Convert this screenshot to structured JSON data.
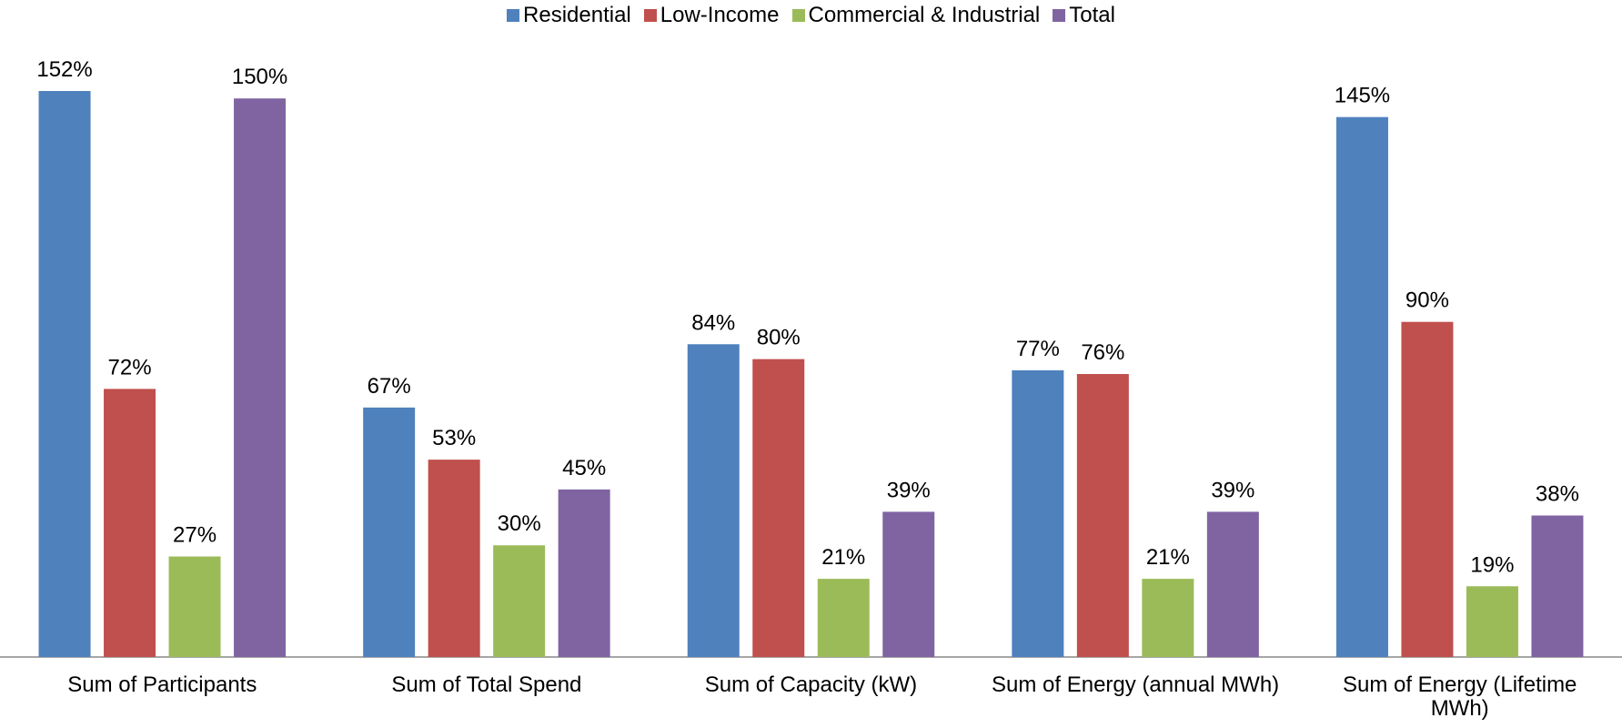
{
  "chart_data": {
    "type": "bar",
    "categories": [
      "Sum of Participants",
      "Sum of Total Spend",
      "Sum of Capacity (kW)",
      "Sum of Energy (annual MWh)",
      "Sum of Energy (Lifetime MWh)"
    ],
    "series": [
      {
        "name": "Residential",
        "color": "#4f81bd",
        "values": [
          152,
          67,
          84,
          77,
          145
        ],
        "value_labels": [
          "152%",
          "67%",
          "84%",
          "77%",
          "145%"
        ]
      },
      {
        "name": "Low-Income",
        "color": "#c0504d",
        "values": [
          72,
          53,
          80,
          76,
          90
        ],
        "value_labels": [
          "72%",
          "53%",
          "80%",
          "76%",
          "90%"
        ]
      },
      {
        "name": "Commercial & Industrial",
        "color": "#9bbb59",
        "values": [
          27,
          30,
          21,
          21,
          19
        ],
        "value_labels": [
          "27%",
          "30%",
          "21%",
          "21%",
          "19%"
        ]
      },
      {
        "name": "Total",
        "color": "#8064a2",
        "values": [
          150,
          45,
          39,
          39,
          38
        ],
        "value_labels": [
          "150%",
          "45%",
          "39%",
          "39%",
          "38%"
        ]
      }
    ],
    "legend": "top"
  }
}
